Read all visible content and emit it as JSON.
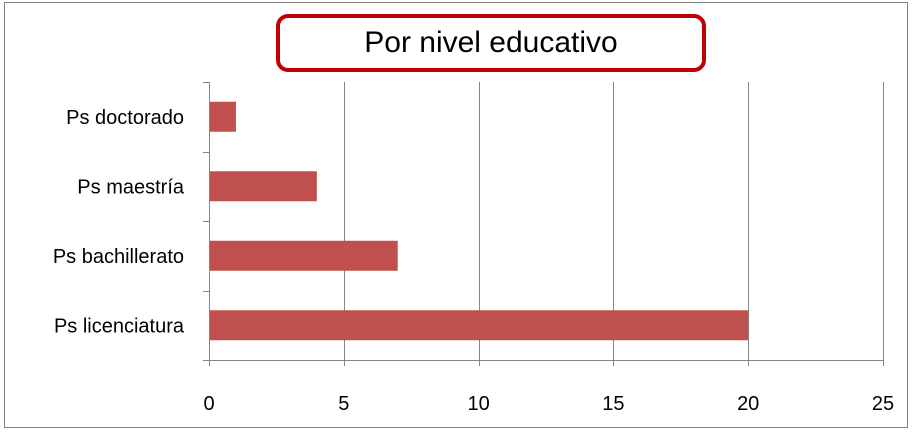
{
  "chart_data": {
    "type": "bar",
    "orientation": "horizontal",
    "title": "Por nivel educativo",
    "categories": [
      "Ps doctorado",
      "Ps maestría",
      "Ps bachillerato",
      "Ps licenciatura"
    ],
    "values": [
      1,
      4,
      7,
      20
    ],
    "xlim": [
      0,
      25
    ],
    "x_ticks": [
      "0",
      "5",
      "10",
      "15",
      "20",
      "25"
    ],
    "xlabel": "",
    "ylabel": "",
    "grid": "vertical",
    "legend": "none",
    "bar_color": "#c0504d",
    "title_border_color": "#c00000",
    "gridline_color": "#868686"
  }
}
